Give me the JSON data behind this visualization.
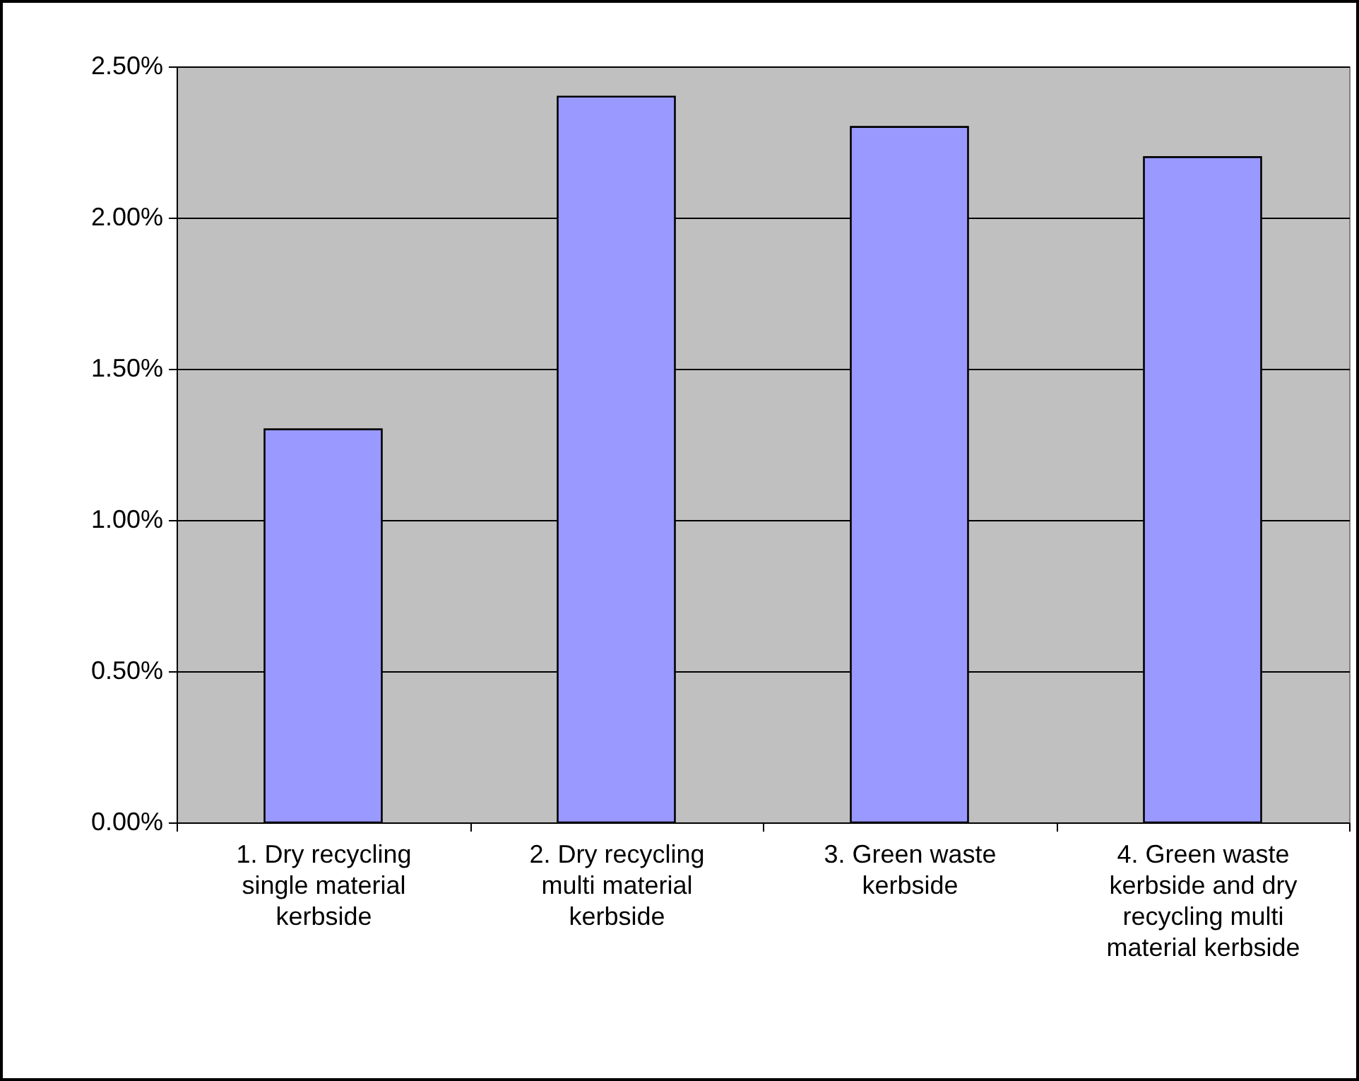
{
  "chart_data": {
    "type": "bar",
    "categories": [
      "1. Dry recycling single material kerbside",
      "2. Dry recycling multi material kerbside",
      "3. Green waste kerbside",
      "4. Green waste kerbside and dry recycling multi material kerbside"
    ],
    "values": [
      1.3,
      2.4,
      2.3,
      2.2
    ],
    "color": "#9999ff",
    "ylim": [
      0,
      2.5
    ],
    "yticks": [
      {
        "value": 0,
        "label": "0.00%"
      },
      {
        "value": 0.5,
        "label": "0.50%"
      },
      {
        "value": 1,
        "label": "1.00%"
      },
      {
        "value": 1.5,
        "label": "1.50%"
      },
      {
        "value": 2,
        "label": "2.00%"
      },
      {
        "value": 2.5,
        "label": "2.50%"
      }
    ],
    "grid": "y"
  }
}
